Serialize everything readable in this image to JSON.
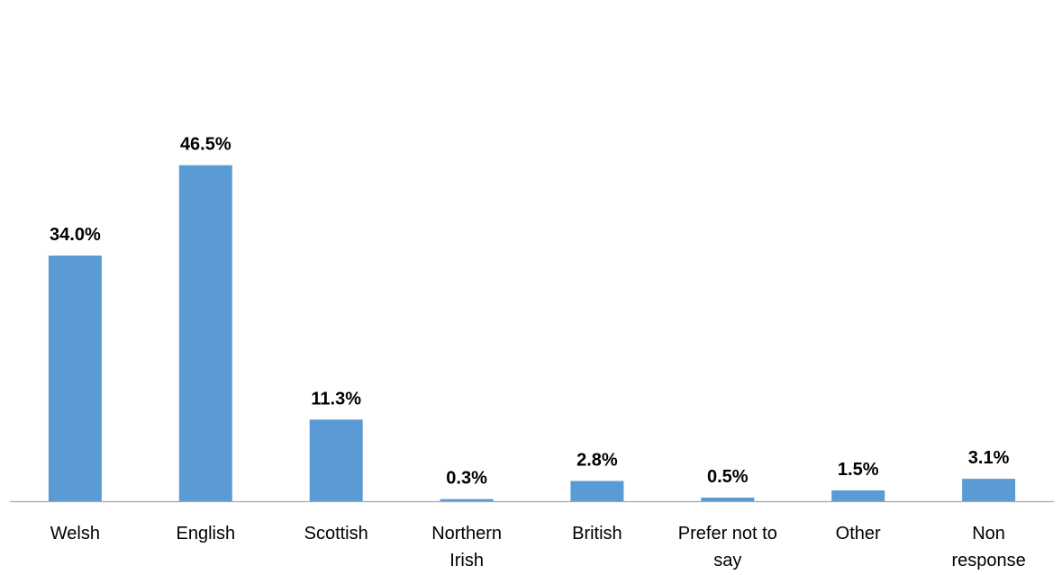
{
  "chart_data": {
    "type": "bar",
    "title": "",
    "xlabel": "",
    "ylabel": "",
    "ylim": [
      0,
      50
    ],
    "grid": false,
    "legend": "none",
    "colors": {
      "bar": "#5b9bd5",
      "axis": "#a6a6a6"
    },
    "categories": [
      "Welsh",
      "English",
      "Scottish",
      "Northern Irish",
      "British",
      "Prefer not to say",
      "Other",
      "Non response"
    ],
    "category_lines": [
      [
        "Welsh"
      ],
      [
        "English"
      ],
      [
        "Scottish"
      ],
      [
        "Northern",
        "Irish"
      ],
      [
        "British"
      ],
      [
        "Prefer not to",
        "say"
      ],
      [
        "Other"
      ],
      [
        "Non",
        "response"
      ]
    ],
    "values": [
      34.0,
      46.5,
      11.3,
      0.3,
      2.8,
      0.5,
      1.5,
      3.1
    ],
    "data_labels": [
      "34.0%",
      "46.5%",
      "11.3%",
      "0.3%",
      "2.8%",
      "0.5%",
      "1.5%",
      "3.1%"
    ]
  }
}
